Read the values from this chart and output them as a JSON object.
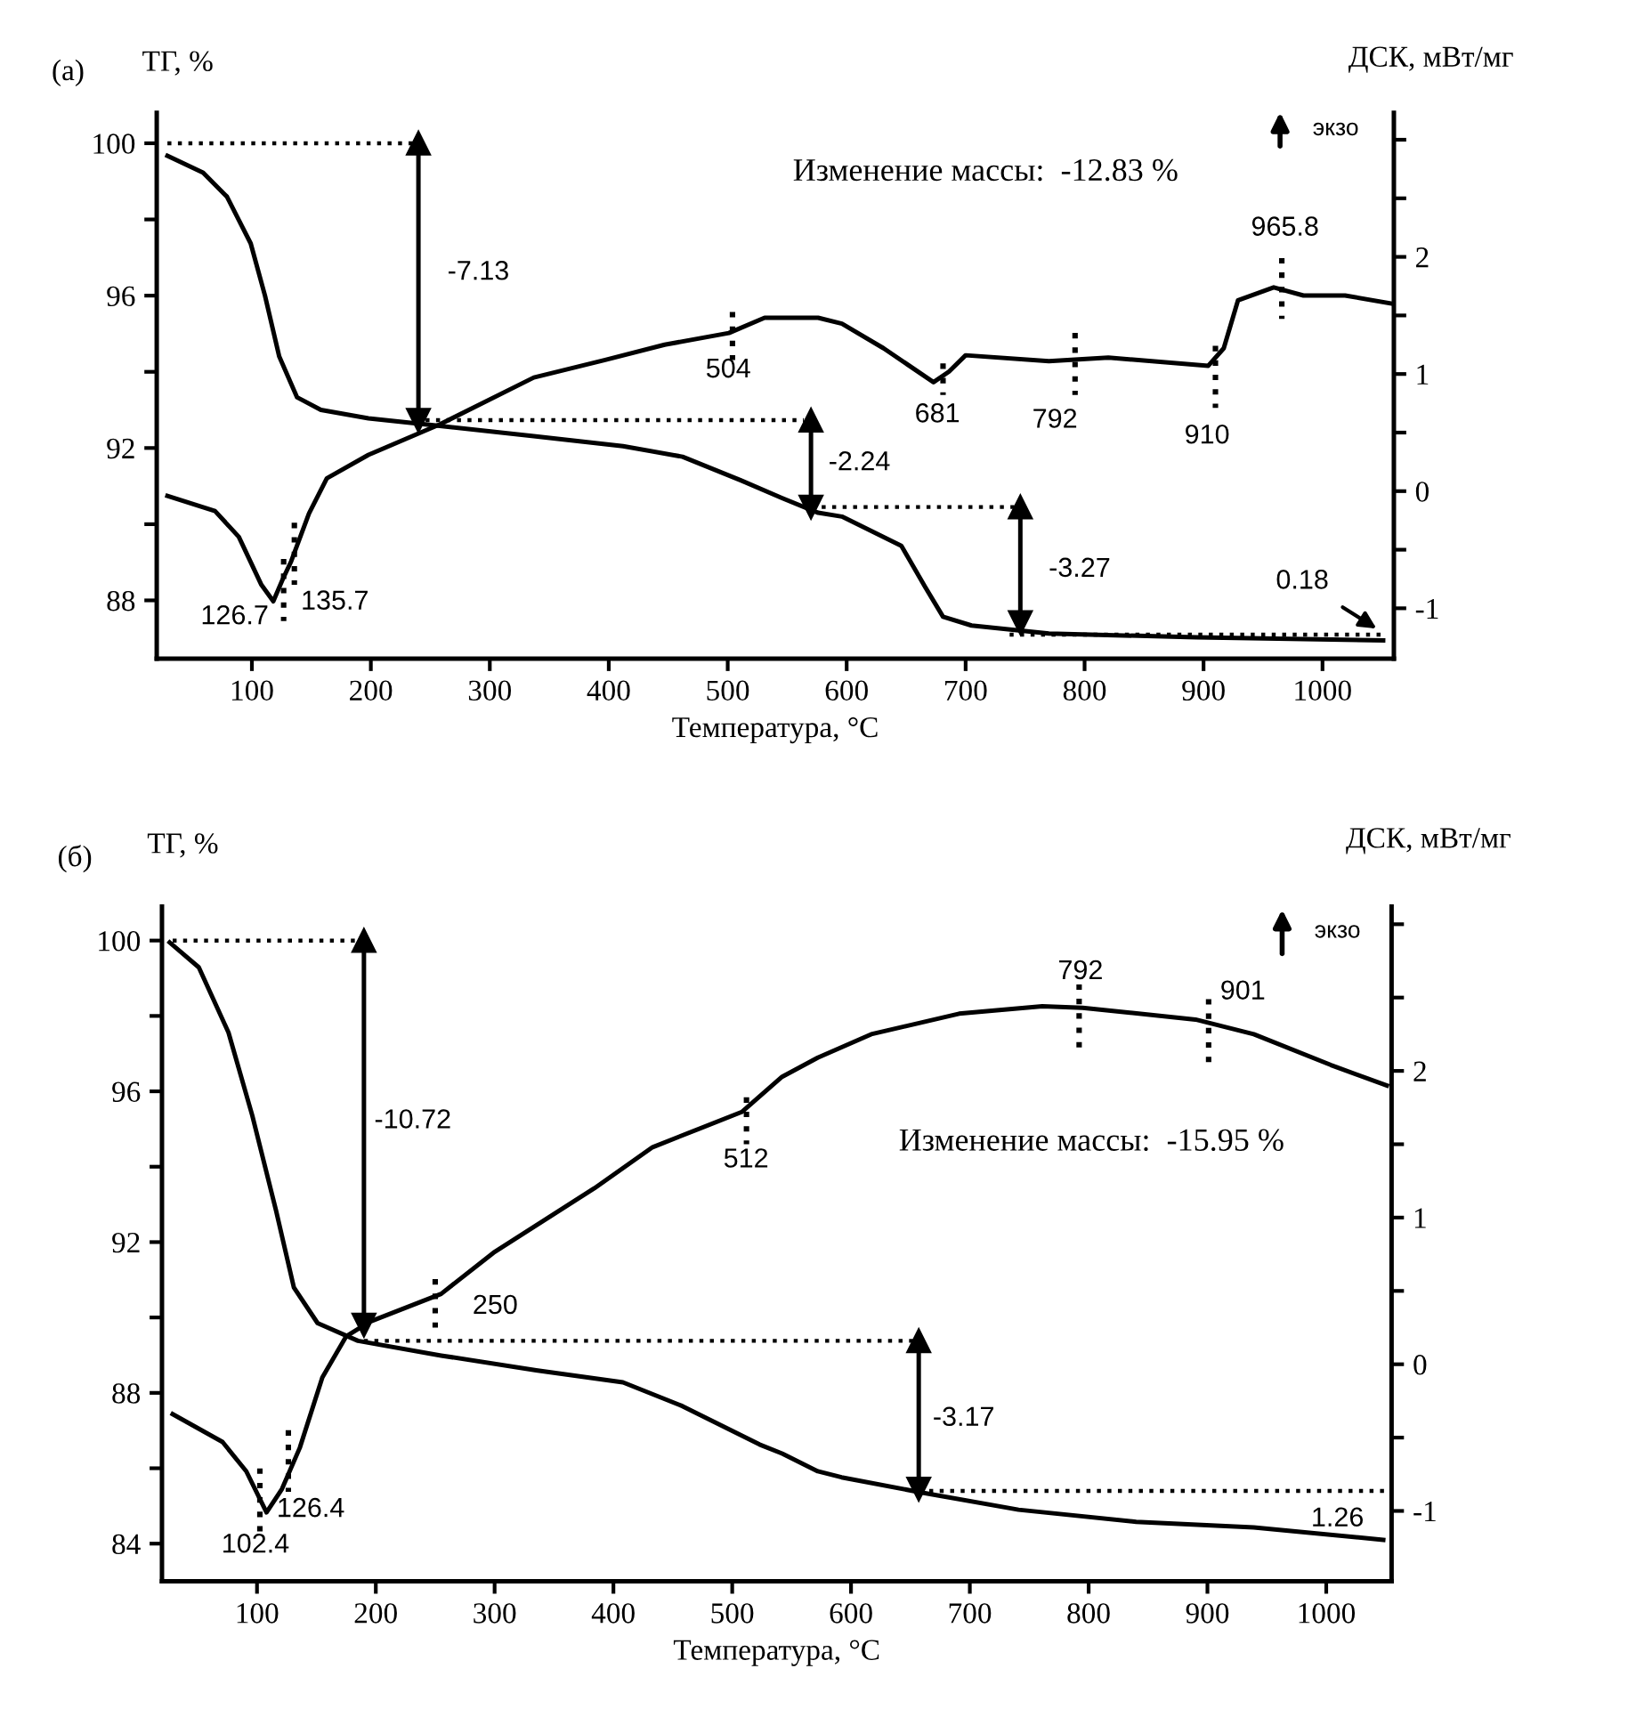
{
  "chart_data": [
    {
      "type": "line",
      "title": "(а)",
      "xlabel": "Температура, °C",
      "ylabel": "ТГ, %",
      "y2label": "ДСК, мВт/мг",
      "xlim": [
        20,
        1060
      ],
      "xticks": [
        100,
        200,
        300,
        400,
        500,
        600,
        700,
        800,
        900,
        1000
      ],
      "ylim": [
        86.47,
        100.8
      ],
      "yticks": [
        88,
        {
          "value": 90,
          "label": null
        },
        92,
        {
          "value": 94,
          "label": null
        },
        96,
        {
          "value": 98,
          "label": null
        },
        100
      ],
      "y2lim": [
        -1.43,
        3.23
      ],
      "y2ticks": [
        {
          "value": -0.5,
          "label": null
        },
        -1,
        0,
        {
          "value": 0.5,
          "label": null
        },
        1,
        {
          "value": 1.5,
          "label": null
        },
        2,
        {
          "value": 2.5,
          "label": null
        },
        {
          "value": 3,
          "label": null
        }
      ],
      "line_style": "solid",
      "series": [
        {
          "color": "#000000",
          "x": [
            29,
            59,
            79,
            99,
            111,
            123,
            138,
            158,
            198,
            258,
            337,
            412,
            462,
            511,
            546,
            576,
            596,
            646,
            666,
            681,
            705,
            770,
            894,
            1051
          ],
          "values": [
            99.67,
            99.23,
            98.6,
            97.37,
            96.0,
            94.4,
            93.33,
            93.0,
            92.78,
            92.58,
            92.31,
            92.05,
            91.77,
            91.15,
            90.68,
            90.3,
            90.2,
            89.43,
            88.35,
            87.57,
            87.34,
            87.13,
            87.03,
            86.95
          ]
        },
        {
          "color": "#000000",
          "axis": "y2",
          "x": [
            29,
            69,
            89,
            108,
            118,
            126,
            133,
            148,
            163,
            198,
            258,
            337,
            397,
            447,
            501,
            531,
            576,
            596,
            631,
            673,
            686,
            700,
            770,
            820,
            904,
            917,
            929,
            959,
            984,
            1019,
            1059
          ],
          "values": [
            -0.04,
            -0.17,
            -0.39,
            -0.8,
            -0.94,
            -0.75,
            -0.6,
            -0.19,
            0.11,
            0.31,
            0.57,
            0.97,
            1.12,
            1.25,
            1.35,
            1.48,
            1.48,
            1.43,
            1.22,
            0.93,
            1.02,
            1.16,
            1.11,
            1.14,
            1.07,
            1.22,
            1.63,
            1.74,
            1.67,
            1.67,
            1.6
          ]
        },
        {
          "color": "#000000",
          "line_style": "dotted",
          "x": [
            29,
            242
          ],
          "values": [
            100,
            100
          ]
        },
        {
          "color": "#000000",
          "line_style": "dotted",
          "x": [
            246,
            564
          ],
          "values": [
            92.73,
            92.73
          ]
        },
        {
          "color": "#000000",
          "line_style": "dotted",
          "x": [
            579,
            746
          ],
          "values": [
            90.45,
            90.45
          ]
        },
        {
          "color": "#000000",
          "line_style": "dotted",
          "x": [
            737,
            1053
          ],
          "values": [
            87.1,
            87.1
          ]
        },
        {
          "color": "#000000",
          "marker": "triangle",
          "x": [
            240,
            240
          ],
          "values": [
            100,
            92.73
          ]
        },
        {
          "color": "#000000",
          "marker": "triangle",
          "x": [
            570,
            570
          ],
          "values": [
            92.73,
            90.45
          ]
        },
        {
          "color": "#000000",
          "marker": "triangle",
          "x": [
            746,
            746
          ],
          "values": [
            90.45,
            87.42
          ]
        },
        {
          "color": "#000000",
          "line_style": "dotted",
          "axis": "y2",
          "x": [
            126.7,
            126.7
          ],
          "values": [
            -0.58,
            -1.11
          ]
        },
        {
          "color": "#000000",
          "line_style": "dotted",
          "axis": "y2",
          "x": [
            135.7,
            135.7
          ],
          "values": [
            -0.27,
            -0.8
          ]
        },
        {
          "color": "#000000",
          "line_style": "dotted",
          "axis": "y2",
          "x": [
            504,
            504
          ],
          "values": [
            1.53,
            1.12
          ]
        },
        {
          "color": "#000000",
          "line_style": "dotted",
          "axis": "y2",
          "x": [
            681,
            681
          ],
          "values": [
            1.09,
            0.82
          ]
        },
        {
          "color": "#000000",
          "line_style": "dotted",
          "axis": "y2",
          "x": [
            792,
            792
          ],
          "values": [
            1.35,
            0.82
          ]
        },
        {
          "color": "#000000",
          "line_style": "dotted",
          "axis": "y2",
          "x": [
            910,
            910
          ],
          "values": [
            1.24,
            0.71
          ]
        },
        {
          "color": "#000000",
          "line_style": "dotted",
          "axis": "y2",
          "x": [
            965.8,
            965.8
          ],
          "values": [
            1.99,
            1.47
          ]
        }
      ],
      "annotations": [
        "Изменение массы:  -12.83 %",
        "экзо",
        "-7.13",
        "-2.24",
        "-3.27",
        "0.18",
        "126.7",
        "135.7",
        "504",
        "681",
        "792",
        "910",
        "965.8"
      ]
    },
    {
      "type": "line",
      "title": "(б)",
      "xlabel": "Температура, °C",
      "ylabel": "ТГ, %",
      "y2label": "ДСК, мВт/мг",
      "xlim": [
        20,
        1055
      ],
      "xticks": [
        100,
        200,
        300,
        400,
        500,
        600,
        700,
        800,
        900,
        1000
      ],
      "ylim": [
        83.0,
        100.9
      ],
      "yticks": [
        84,
        {
          "value": 86,
          "label": null
        },
        88,
        {
          "value": 90,
          "label": null
        },
        92,
        {
          "value": 94,
          "label": null
        },
        96,
        {
          "value": 98,
          "label": null
        },
        100
      ],
      "y2lim": [
        -1.48,
        3.12
      ],
      "y2ticks": [
        -1,
        {
          "value": -0.5,
          "label": null
        },
        0,
        {
          "value": 0.5,
          "label": null
        },
        1,
        {
          "value": 1.5,
          "label": null
        },
        2,
        {
          "value": 2.5,
          "label": null
        },
        {
          "value": 3,
          "label": null
        }
      ],
      "line_style": "solid",
      "series": [
        {
          "color": "#000000",
          "x": [
            26.5,
            51,
            76,
            96,
            116,
            131,
            151,
            185,
            255,
            335,
            408,
            458,
            523,
            542,
            572,
            592,
            657,
            741,
            840,
            939,
            1048
          ],
          "values": [
            99.95,
            99.29,
            97.56,
            95.36,
            92.84,
            90.8,
            89.85,
            89.38,
            88.99,
            88.6,
            88.28,
            87.65,
            86.63,
            86.39,
            85.92,
            85.76,
            85.37,
            84.9,
            84.58,
            84.43,
            84.1
          ]
        },
        {
          "color": "#000000",
          "axis": "y2",
          "x": [
            29,
            71,
            91,
            108,
            121,
            136,
            155,
            175,
            195,
            255,
            299,
            384,
            433,
            508,
            542,
            572,
            617,
            691,
            761,
            795,
            890,
            939,
            1004,
            1051
          ],
          "values": [
            -0.34,
            -0.53,
            -0.73,
            -1.01,
            -0.85,
            -0.57,
            -0.09,
            0.19,
            0.29,
            0.48,
            0.76,
            1.2,
            1.48,
            1.72,
            1.96,
            2.09,
            2.25,
            2.39,
            2.44,
            2.43,
            2.35,
            2.25,
            2.04,
            1.9
          ]
        },
        {
          "color": "#000000",
          "line_style": "dotted",
          "x": [
            29,
            190
          ],
          "values": [
            100,
            100
          ]
        },
        {
          "color": "#000000",
          "line_style": "dotted",
          "x": [
            190,
            657
          ],
          "values": [
            89.38,
            89.38
          ]
        },
        {
          "color": "#000000",
          "line_style": "dotted",
          "x": [
            657,
            1051
          ],
          "values": [
            85.4,
            85.4
          ]
        },
        {
          "color": "#000000",
          "marker": "triangle",
          "x": [
            190,
            190
          ],
          "values": [
            100,
            89.8
          ]
        },
        {
          "color": "#000000",
          "marker": "triangle",
          "x": [
            657,
            657
          ],
          "values": [
            89.38,
            85.45
          ]
        },
        {
          "color": "#000000",
          "line_style": "dotted",
          "axis": "y2",
          "x": [
            102.4,
            102.4
          ],
          "values": [
            -0.71,
            -1.14
          ]
        },
        {
          "color": "#000000",
          "line_style": "dotted",
          "axis": "y2",
          "x": [
            126.4,
            126.4
          ],
          "values": [
            -0.45,
            -0.87
          ]
        },
        {
          "color": "#000000",
          "line_style": "dotted",
          "axis": "y2",
          "x": [
            250,
            250
          ],
          "values": [
            0.58,
            0.25
          ]
        },
        {
          "color": "#000000",
          "line_style": "dotted",
          "axis": "y2",
          "x": [
            512,
            512
          ],
          "values": [
            1.82,
            1.5
          ]
        },
        {
          "color": "#000000",
          "line_style": "dotted",
          "axis": "y2",
          "x": [
            792,
            792
          ],
          "values": [
            2.59,
            2.15
          ]
        },
        {
          "color": "#000000",
          "line_style": "dotted",
          "axis": "y2",
          "x": [
            901,
            901
          ],
          "values": [
            2.49,
            2.04
          ]
        }
      ],
      "annotations": [
        "Изменение массы:  -15.95 %",
        "экзо",
        "-10.72",
        "-3.17",
        "1.26",
        "102.4",
        "126.4",
        "250",
        "512",
        "792",
        "901"
      ]
    }
  ]
}
